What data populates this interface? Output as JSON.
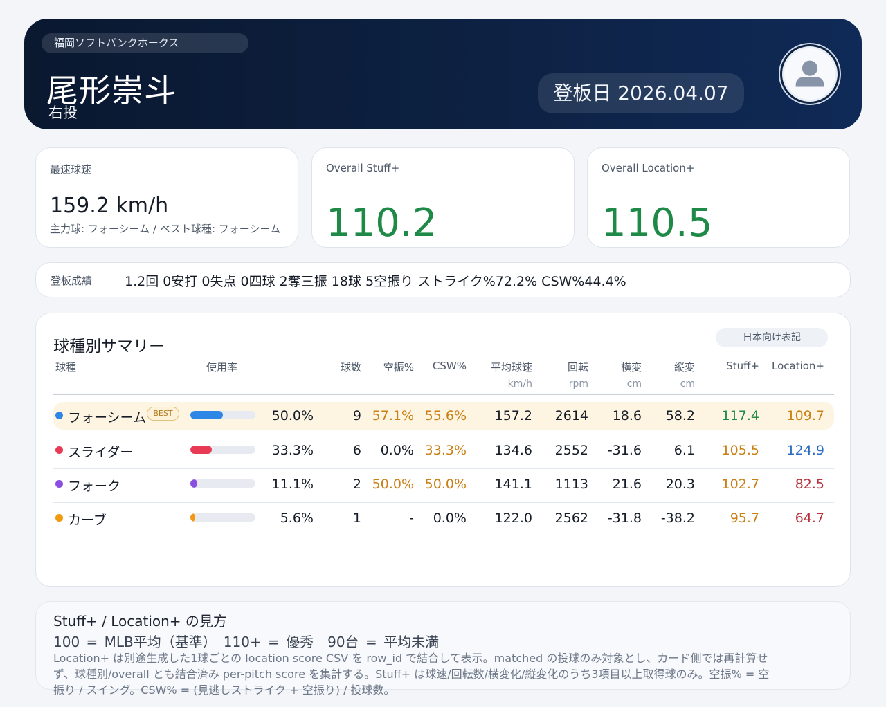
{
  "header": {
    "team": "福岡ソフトバンクホークス",
    "player_name": "尾形崇斗",
    "throws": "右投",
    "date_label": "登板日 2026.04.07",
    "avatar_icon": "user-avatar-icon"
  },
  "stats": {
    "top_speed": {
      "label": "最速球速",
      "value": "159.2 km/h",
      "sub": "主力球: フォーシーム / ベスト球種: フォーシーム"
    },
    "stuff": {
      "label": "Overall Stuff+",
      "value": "110.2"
    },
    "location": {
      "label": "Overall Location+",
      "value": "110.5"
    }
  },
  "record": {
    "label": "登板成績",
    "text": "1.2回 0安打 0失点 0四球 2奪三振 18球 5空振り ストライク%72.2% CSW%44.4%"
  },
  "summary": {
    "title": "球種別サマリー",
    "toggle_label": "日本向け表記",
    "columns": {
      "pitch": "球種",
      "usage": "使用率",
      "count": "球数",
      "whiff": "空振%",
      "csw": "CSW%",
      "velo": "平均球速",
      "velo_unit": "km/h",
      "spin": "回転",
      "spin_unit": "rpm",
      "hbreak": "横変",
      "hbreak_unit": "cm",
      "vbreak": "縦変",
      "vbreak_unit": "cm",
      "stuff": "Stuff+",
      "location": "Location+"
    },
    "best_badge": "BEST",
    "rows": [
      {
        "name": "フォーシーム",
        "color": "#2e86e6",
        "usage_frac": 0.5,
        "usage": "50.0%",
        "count": "9",
        "whiff": "57.1%",
        "csw": "55.6%",
        "velo": "157.2",
        "spin": "2614",
        "hbreak": "18.6",
        "vbreak": "58.2",
        "stuff": "117.4",
        "location": "109.7"
      },
      {
        "name": "スライダー",
        "color": "#e83a55",
        "usage_frac": 0.333,
        "usage": "33.3%",
        "count": "6",
        "whiff": "0.0%",
        "csw": "33.3%",
        "velo": "134.6",
        "spin": "2552",
        "hbreak": "-31.6",
        "vbreak": "6.1",
        "stuff": "105.5",
        "location": "124.9"
      },
      {
        "name": "フォーク",
        "color": "#8a4fe0",
        "usage_frac": 0.111,
        "usage": "11.1%",
        "count": "2",
        "whiff": "50.0%",
        "csw": "50.0%",
        "velo": "141.1",
        "spin": "1113",
        "hbreak": "21.6",
        "vbreak": "20.3",
        "stuff": "102.7",
        "location": "82.5"
      },
      {
        "name": "カーブ",
        "color": "#f29a0f",
        "usage_frac": 0.056,
        "usage": "5.6%",
        "count": "1",
        "whiff": "-",
        "csw": "0.0%",
        "velo": "122.0",
        "spin": "2562",
        "hbreak": "-31.8",
        "vbreak": "-38.2",
        "stuff": "95.7",
        "location": "64.7"
      }
    ]
  },
  "guide": {
    "title": "Stuff+ / Location+ の見方",
    "scale": "100 = MLB平均（基準）　110+ = 優秀　90台 = 平均未満",
    "note": "Location+ は別途生成した1球ごとの location score CSV を row_id で結合して表示。matched の投球のみ対象とし、カード側では再計算せず、球種別/overall とも結合済み per-pitch score を集計する。Stuff+ は球速/回転数/横変化/縦変化のうち3項目以上取得球のみ。空振% = 空振り / スイング。CSW% = (見逃しストライク + 空振り) / 投球数。"
  },
  "colors": {
    "good": "#1f8a47",
    "average": "#c98016",
    "elite_location": "#2b6cc4",
    "poor": "#b8323d"
  }
}
